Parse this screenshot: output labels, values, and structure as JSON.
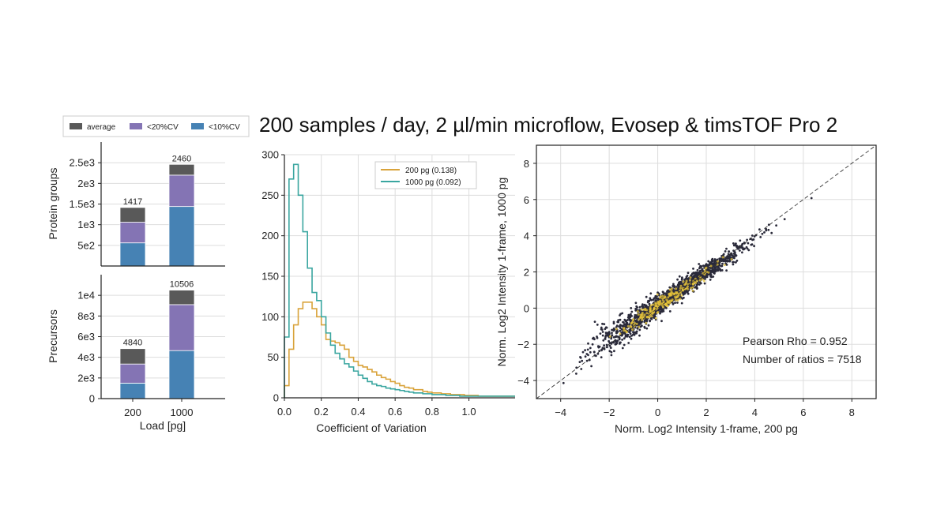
{
  "title": "200 samples / day, 2 µl/min microflow, Evosep & timsTOF Pro 2",
  "colors": {
    "average": "#595959",
    "cv20": "#8474b4",
    "cv10": "#4682b4",
    "hist200": "#d9a33b",
    "hist1000": "#3aa6a0",
    "scatter": "#2a2a3a",
    "density": "#e8c53a",
    "grid": "#dddddd"
  },
  "chart_data": [
    {
      "type": "bar",
      "panel": "protein-groups",
      "ylabel": "Protein groups",
      "xlabel": "Load [pg]",
      "categories": [
        "200",
        "1000"
      ],
      "ylim": [
        0,
        3000
      ],
      "yticks": [
        500,
        1000,
        1500,
        2000,
        2500
      ],
      "ytick_labels": [
        "5e2",
        "1e3",
        "1.5e3",
        "2e3",
        "2.5e3"
      ],
      "legend": [
        "average",
        "<20%CV",
        "<10%CV"
      ],
      "series": [
        {
          "name": "<10%CV",
          "values": [
            560,
            1440
          ]
        },
        {
          "name": "<20%CV",
          "values": [
            500,
            760
          ]
        },
        {
          "name": "average",
          "values": [
            357,
            260
          ]
        }
      ],
      "totals": [
        1417,
        2460
      ],
      "total_labels": [
        "1417",
        "2460"
      ]
    },
    {
      "type": "bar",
      "panel": "precursors",
      "ylabel": "Precursors",
      "xlabel": "Load [pg]",
      "categories": [
        "200",
        "1000"
      ],
      "ylim": [
        0,
        12000
      ],
      "yticks": [
        0,
        2000,
        4000,
        6000,
        8000,
        10000
      ],
      "ytick_labels": [
        "0",
        "2e3",
        "4e3",
        "6e3",
        "8e3",
        "1e4"
      ],
      "series": [
        {
          "name": "<10%CV",
          "values": [
            1500,
            4650
          ]
        },
        {
          "name": "<20%CV",
          "values": [
            1850,
            4450
          ]
        },
        {
          "name": "average",
          "values": [
            1490,
            1406
          ]
        }
      ],
      "totals": [
        4840,
        10506
      ],
      "total_labels": [
        "4840",
        "10506"
      ]
    },
    {
      "type": "line",
      "panel": "cv-histogram",
      "xlabel": "Coefficient of Variation",
      "ylabel": "",
      "xlim": [
        0,
        1.25
      ],
      "ylim": [
        0,
        300
      ],
      "xticks": [
        0,
        0.2,
        0.4,
        0.6,
        0.8,
        1.0
      ],
      "xtick_labels": [
        "0.0",
        "0.2",
        "0.4",
        "0.6",
        "0.8",
        "1.0"
      ],
      "yticks": [
        0,
        50,
        100,
        150,
        200,
        250,
        300
      ],
      "ytick_labels": [
        "0",
        "50",
        "100",
        "150",
        "200",
        "250",
        "300"
      ],
      "bin_width": 0.025,
      "series": [
        {
          "name": "200 pg (0.138)",
          "values": [
            15,
            60,
            90,
            110,
            118,
            118,
            110,
            100,
            90,
            72,
            70,
            68,
            65,
            60,
            50,
            45,
            40,
            38,
            35,
            32,
            28,
            25,
            23,
            20,
            18,
            15,
            13,
            12,
            10,
            10,
            8,
            7,
            6,
            6,
            5,
            5,
            4,
            4,
            4,
            3,
            3,
            3,
            2,
            2,
            2,
            2,
            2,
            2,
            2,
            2
          ]
        },
        {
          "name": "1000 pg (0.092)",
          "values": [
            75,
            270,
            288,
            250,
            205,
            160,
            130,
            120,
            100,
            80,
            65,
            55,
            48,
            42,
            38,
            33,
            28,
            24,
            20,
            17,
            15,
            14,
            12,
            11,
            10,
            9,
            8,
            7,
            6,
            6,
            5,
            5,
            4,
            4,
            4,
            3,
            3,
            3,
            2,
            2,
            2,
            2,
            2,
            2,
            2,
            2,
            2,
            2,
            2,
            2
          ]
        }
      ]
    },
    {
      "type": "scatter",
      "panel": "intensity-correlation",
      "xlabel": "Norm. Log2 Intensity 1-frame, 200 pg",
      "ylabel": "Norm. Log2 Intensity 1-frame, 1000 pg",
      "xlim": [
        -5,
        9
      ],
      "ylim": [
        -5,
        9
      ],
      "xticks": [
        -4,
        -2,
        0,
        2,
        4,
        6,
        8
      ],
      "xtick_labels": [
        "−4",
        "−2",
        "0",
        "2",
        "4",
        "6",
        "8"
      ],
      "yticks": [
        -4,
        -2,
        0,
        2,
        4,
        6,
        8
      ],
      "ytick_labels": [
        "−4",
        "−2",
        "0",
        "2",
        "4",
        "6",
        "8"
      ],
      "n_points": 7518,
      "rho": 0.952,
      "annotations": [
        "Pearson Rho = 0.952",
        "Number of ratios = 7518"
      ],
      "diagonal": true
    }
  ]
}
